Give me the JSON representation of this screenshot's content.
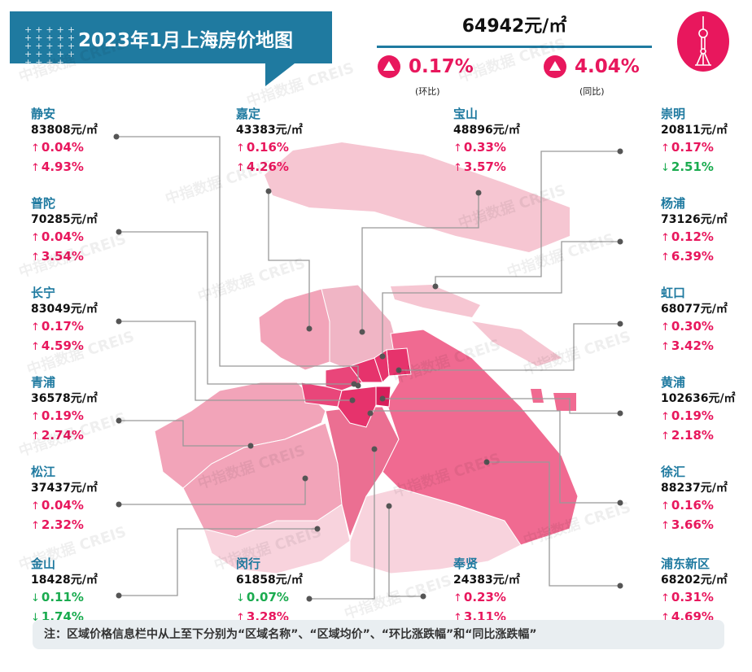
{
  "header": {
    "title": "2023年1月上海房价地图",
    "avg_price": "64942元/㎡",
    "mom_change": "0.17%",
    "mom_label": "(环比)",
    "yoy_change": "4.04%",
    "yoy_label": "(同比)",
    "logo_icon": "oriental-pearl-tower-icon"
  },
  "watermark": "中指数据 CREIS",
  "colors": {
    "accent": "#1f7aa0",
    "up": "#e8175d",
    "down": "#1aab4f"
  },
  "districts": [
    {
      "name": "静安",
      "price": "83808元/㎡",
      "mom": "0.04%",
      "mom_dir": "up",
      "yoy": "4.93%",
      "yoy_dir": "up"
    },
    {
      "name": "普陀",
      "price": "70285元/㎡",
      "mom": "0.04%",
      "mom_dir": "up",
      "yoy": "3.54%",
      "yoy_dir": "up"
    },
    {
      "name": "长宁",
      "price": "83049元/㎡",
      "mom": "0.17%",
      "mom_dir": "up",
      "yoy": "4.59%",
      "yoy_dir": "up"
    },
    {
      "name": "青浦",
      "price": "36578元/㎡",
      "mom": "0.19%",
      "mom_dir": "up",
      "yoy": "2.74%",
      "yoy_dir": "up"
    },
    {
      "name": "松江",
      "price": "37437元/㎡",
      "mom": "0.04%",
      "mom_dir": "up",
      "yoy": "2.32%",
      "yoy_dir": "up"
    },
    {
      "name": "金山",
      "price": "18428元/㎡",
      "mom": "0.11%",
      "mom_dir": "down",
      "yoy": "1.74%",
      "yoy_dir": "down"
    },
    {
      "name": "嘉定",
      "price": "43383元/㎡",
      "mom": "0.16%",
      "mom_dir": "up",
      "yoy": "4.26%",
      "yoy_dir": "up"
    },
    {
      "name": "闵行",
      "price": "61858元/㎡",
      "mom": "0.07%",
      "mom_dir": "down",
      "yoy": "3.28%",
      "yoy_dir": "up"
    },
    {
      "name": "宝山",
      "price": "48896元/㎡",
      "mom": "0.33%",
      "mom_dir": "up",
      "yoy": "3.57%",
      "yoy_dir": "up"
    },
    {
      "name": "奉贤",
      "price": "24383元/㎡",
      "mom": "0.23%",
      "mom_dir": "up",
      "yoy": "3.11%",
      "yoy_dir": "up"
    },
    {
      "name": "崇明",
      "price": "20811元/㎡",
      "mom": "0.17%",
      "mom_dir": "up",
      "yoy": "2.51%",
      "yoy_dir": "down"
    },
    {
      "name": "杨浦",
      "price": "73126元/㎡",
      "mom": "0.12%",
      "mom_dir": "up",
      "yoy": "6.39%",
      "yoy_dir": "up"
    },
    {
      "name": "虹口",
      "price": "68077元/㎡",
      "mom": "0.30%",
      "mom_dir": "up",
      "yoy": "3.42%",
      "yoy_dir": "up"
    },
    {
      "name": "黄浦",
      "price": "102636元/㎡",
      "mom": "0.19%",
      "mom_dir": "up",
      "yoy": "2.18%",
      "yoy_dir": "up"
    },
    {
      "name": "徐汇",
      "price": "88237元/㎡",
      "mom": "0.16%",
      "mom_dir": "up",
      "yoy": "3.66%",
      "yoy_dir": "up"
    },
    {
      "name": "浦东新区",
      "price": "68202元/㎡",
      "mom": "0.31%",
      "mom_dir": "up",
      "yoy": "4.69%",
      "yoy_dir": "up"
    }
  ],
  "footer_note": "注：区域价格信息栏中从上至下分别为“区域名称”、“区域均价”、“环比涨跌幅”和“同比涨跌幅”"
}
